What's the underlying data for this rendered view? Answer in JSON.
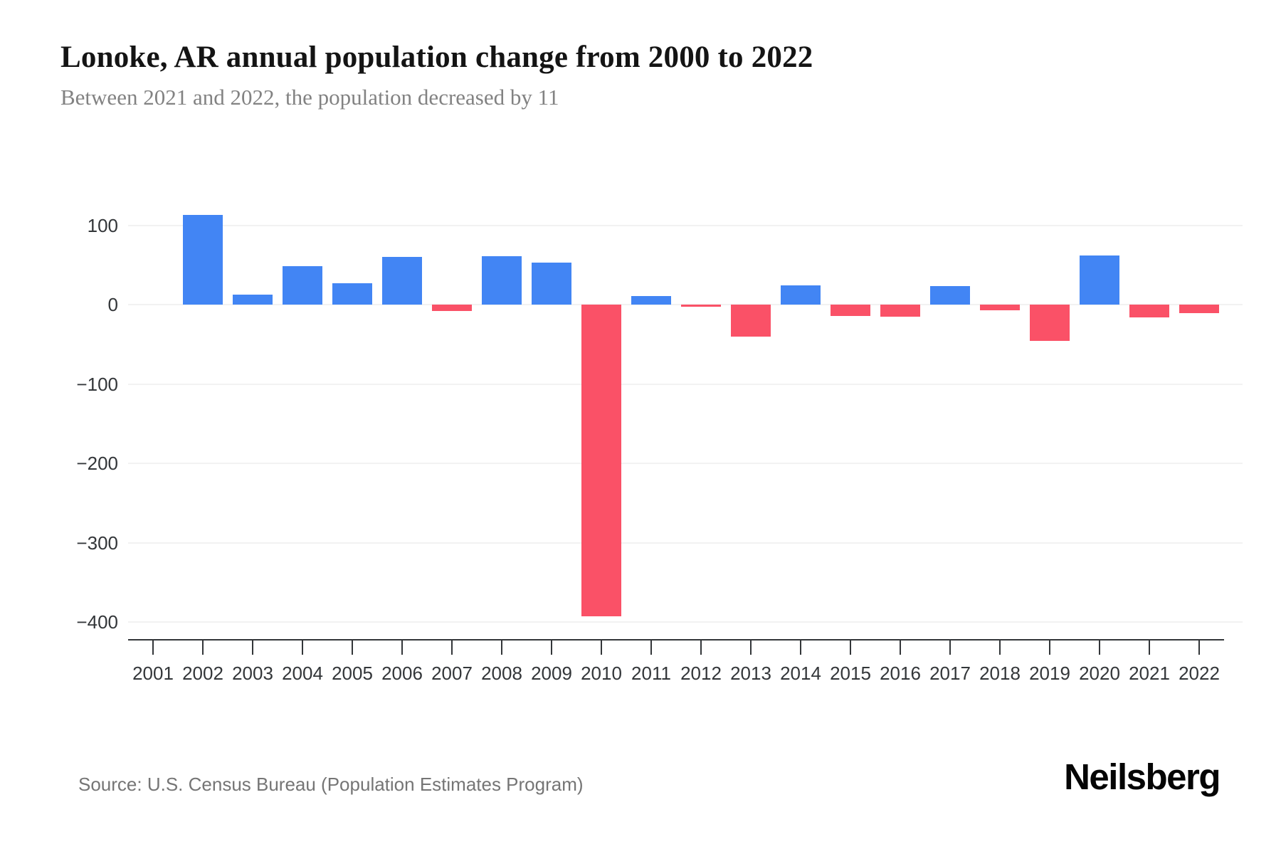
{
  "header": {
    "title": "Lonoke, AR annual population change from 2000 to 2022",
    "subtitle": "Between 2021 and 2022, the population decreased by 11"
  },
  "footer": {
    "source": "Source: U.S. Census Bureau (Population Estimates Program)",
    "brand": "Neilsberg"
  },
  "chart_data": {
    "type": "bar",
    "title": "Lonoke, AR annual population change from 2000 to 2022",
    "subtitle": "Between 2021 and 2022, the population decreased by 11",
    "xlabel": "",
    "ylabel": "",
    "categories": [
      "2001",
      "2002",
      "2003",
      "2004",
      "2005",
      "2006",
      "2007",
      "2008",
      "2009",
      "2010",
      "2011",
      "2012",
      "2013",
      "2014",
      "2015",
      "2016",
      "2017",
      "2018",
      "2019",
      "2020",
      "2021",
      "2022"
    ],
    "values": [
      0,
      113,
      13,
      48,
      27,
      60,
      -8,
      61,
      53,
      -393,
      11,
      -3,
      -40,
      24,
      -14,
      -15,
      23,
      -7,
      -46,
      62,
      -16,
      -11
    ],
    "y_ticks": [
      100,
      0,
      -100,
      -200,
      -300,
      -400
    ],
    "y_tick_labels": [
      "100",
      "0",
      "−100",
      "−200",
      "−300",
      "−400"
    ],
    "ylim": [
      -430,
      140
    ],
    "grid": true,
    "legend": "none",
    "colors": {
      "positive": "#4285F4",
      "negative": "#FA5167",
      "gridline": "#f2f2f2",
      "axis": "#333639",
      "title": "#141414",
      "subtitle": "#828282",
      "source": "#757575"
    }
  }
}
